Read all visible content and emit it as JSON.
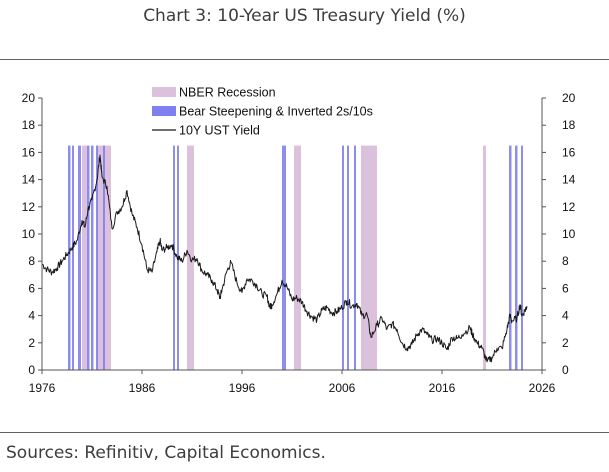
{
  "header": {
    "title": "Chart 3: 10-Year US Treasury Yield (%)"
  },
  "footer": {
    "source": "Sources: Refinitiv, Capital Economics."
  },
  "colors": {
    "recession": "#dcc1dc",
    "bear_steepening": "#7f7ff0",
    "yield_line": "#1a1a1a",
    "rule": "#5f6368"
  },
  "chart_data": {
    "type": "line",
    "title": "",
    "xlabel": "",
    "ylabel": "",
    "xlim": [
      1976,
      2026
    ],
    "ylim": [
      0,
      20
    ],
    "x_ticks": [
      "1976",
      "1986",
      "1996",
      "2006",
      "2016",
      "2026"
    ],
    "y_ticks_left": [
      "0",
      "2",
      "4",
      "6",
      "8",
      "10",
      "12",
      "14",
      "16",
      "18",
      "20"
    ],
    "y_ticks_right": [
      "0",
      "2",
      "4",
      "6",
      "8",
      "10",
      "12",
      "14",
      "16",
      "18",
      "20"
    ],
    "grid": false,
    "legend_position": "top-center",
    "legend": [
      "NBER Recession",
      "Bear Steepening & Inverted 2s/10s",
      "10Y UST Yield"
    ],
    "shaded_band_top": 16.5,
    "recession_periods": [
      {
        "start": 1980.0,
        "end": 1980.5
      },
      {
        "start": 1981.5,
        "end": 1982.9
      },
      {
        "start": 1990.5,
        "end": 1991.2
      },
      {
        "start": 2001.2,
        "end": 2001.9
      },
      {
        "start": 2007.9,
        "end": 2009.5
      },
      {
        "start": 2020.1,
        "end": 2020.4
      }
    ],
    "bear_steepening_periods": [
      {
        "start": 1978.6,
        "end": 1978.85
      },
      {
        "start": 1979.0,
        "end": 1979.2
      },
      {
        "start": 1979.6,
        "end": 1979.9
      },
      {
        "start": 1980.5,
        "end": 1980.75
      },
      {
        "start": 1980.9,
        "end": 1981.15
      },
      {
        "start": 1981.4,
        "end": 1981.6
      },
      {
        "start": 1982.1,
        "end": 1982.3
      },
      {
        "start": 1989.1,
        "end": 1989.3
      },
      {
        "start": 1989.5,
        "end": 1989.7
      },
      {
        "start": 2000.0,
        "end": 2000.4
      },
      {
        "start": 2006.0,
        "end": 2006.2
      },
      {
        "start": 2006.5,
        "end": 2006.7
      },
      {
        "start": 2007.2,
        "end": 2007.4
      },
      {
        "start": 2022.7,
        "end": 2022.95
      },
      {
        "start": 2023.3,
        "end": 2023.55
      },
      {
        "start": 2023.9,
        "end": 2024.1
      }
    ],
    "series": [
      {
        "name": "10Y UST Yield",
        "x": [
          1976.0,
          1976.5,
          1977.0,
          1977.5,
          1978.0,
          1978.5,
          1979.0,
          1979.5,
          1980.0,
          1980.3,
          1980.6,
          1981.0,
          1981.5,
          1981.8,
          1982.0,
          1982.5,
          1983.0,
          1983.5,
          1984.0,
          1984.5,
          1985.0,
          1985.5,
          1986.0,
          1986.5,
          1987.0,
          1987.5,
          1987.8,
          1988.0,
          1988.5,
          1989.0,
          1989.5,
          1990.0,
          1990.5,
          1991.0,
          1991.5,
          1992.0,
          1992.5,
          1993.0,
          1993.5,
          1993.8,
          1994.0,
          1994.5,
          1994.9,
          1995.5,
          1996.0,
          1996.5,
          1997.0,
          1997.5,
          1998.0,
          1998.5,
          1998.8,
          1999.0,
          1999.5,
          2000.0,
          2000.5,
          2001.0,
          2001.5,
          2002.0,
          2002.5,
          2003.0,
          2003.5,
          2004.0,
          2004.5,
          2005.0,
          2005.5,
          2006.0,
          2006.5,
          2007.0,
          2007.5,
          2008.0,
          2008.5,
          2008.9,
          2009.5,
          2010.0,
          2010.5,
          2011.0,
          2011.5,
          2012.0,
          2012.5,
          2013.0,
          2013.5,
          2014.0,
          2014.5,
          2015.0,
          2015.5,
          2016.0,
          2016.5,
          2017.0,
          2017.5,
          2018.0,
          2018.8,
          2019.0,
          2019.5,
          2020.0,
          2020.5,
          2021.0,
          2021.5,
          2022.0,
          2022.5,
          2022.8,
          2023.0,
          2023.5,
          2023.8,
          2024.0,
          2024.3,
          2024.5
        ],
        "y": [
          7.8,
          7.4,
          7.2,
          7.5,
          8.0,
          8.5,
          9.0,
          9.5,
          11.0,
          10.5,
          11.8,
          12.5,
          14.0,
          15.8,
          14.2,
          13.5,
          10.4,
          11.6,
          12.0,
          13.2,
          11.5,
          10.5,
          9.2,
          7.4,
          7.2,
          8.7,
          9.5,
          8.8,
          9.0,
          9.2,
          8.3,
          8.0,
          8.8,
          8.1,
          8.2,
          7.3,
          7.0,
          6.6,
          5.9,
          5.3,
          5.9,
          7.3,
          7.9,
          6.4,
          5.7,
          6.7,
          6.6,
          6.2,
          5.6,
          5.4,
          4.6,
          4.8,
          5.6,
          6.6,
          6.1,
          5.2,
          5.3,
          5.0,
          4.3,
          3.9,
          3.7,
          4.4,
          4.6,
          4.2,
          4.3,
          4.6,
          5.1,
          4.7,
          4.9,
          4.0,
          4.1,
          2.4,
          3.3,
          3.8,
          3.0,
          3.4,
          3.0,
          2.0,
          1.6,
          1.9,
          2.6,
          3.0,
          2.6,
          2.2,
          2.3,
          2.0,
          1.5,
          2.4,
          2.3,
          2.6,
          3.1,
          2.7,
          2.0,
          1.6,
          0.6,
          0.9,
          1.6,
          1.6,
          3.0,
          4.0,
          3.6,
          3.8,
          4.8,
          4.0,
          4.4,
          4.7
        ]
      }
    ]
  }
}
